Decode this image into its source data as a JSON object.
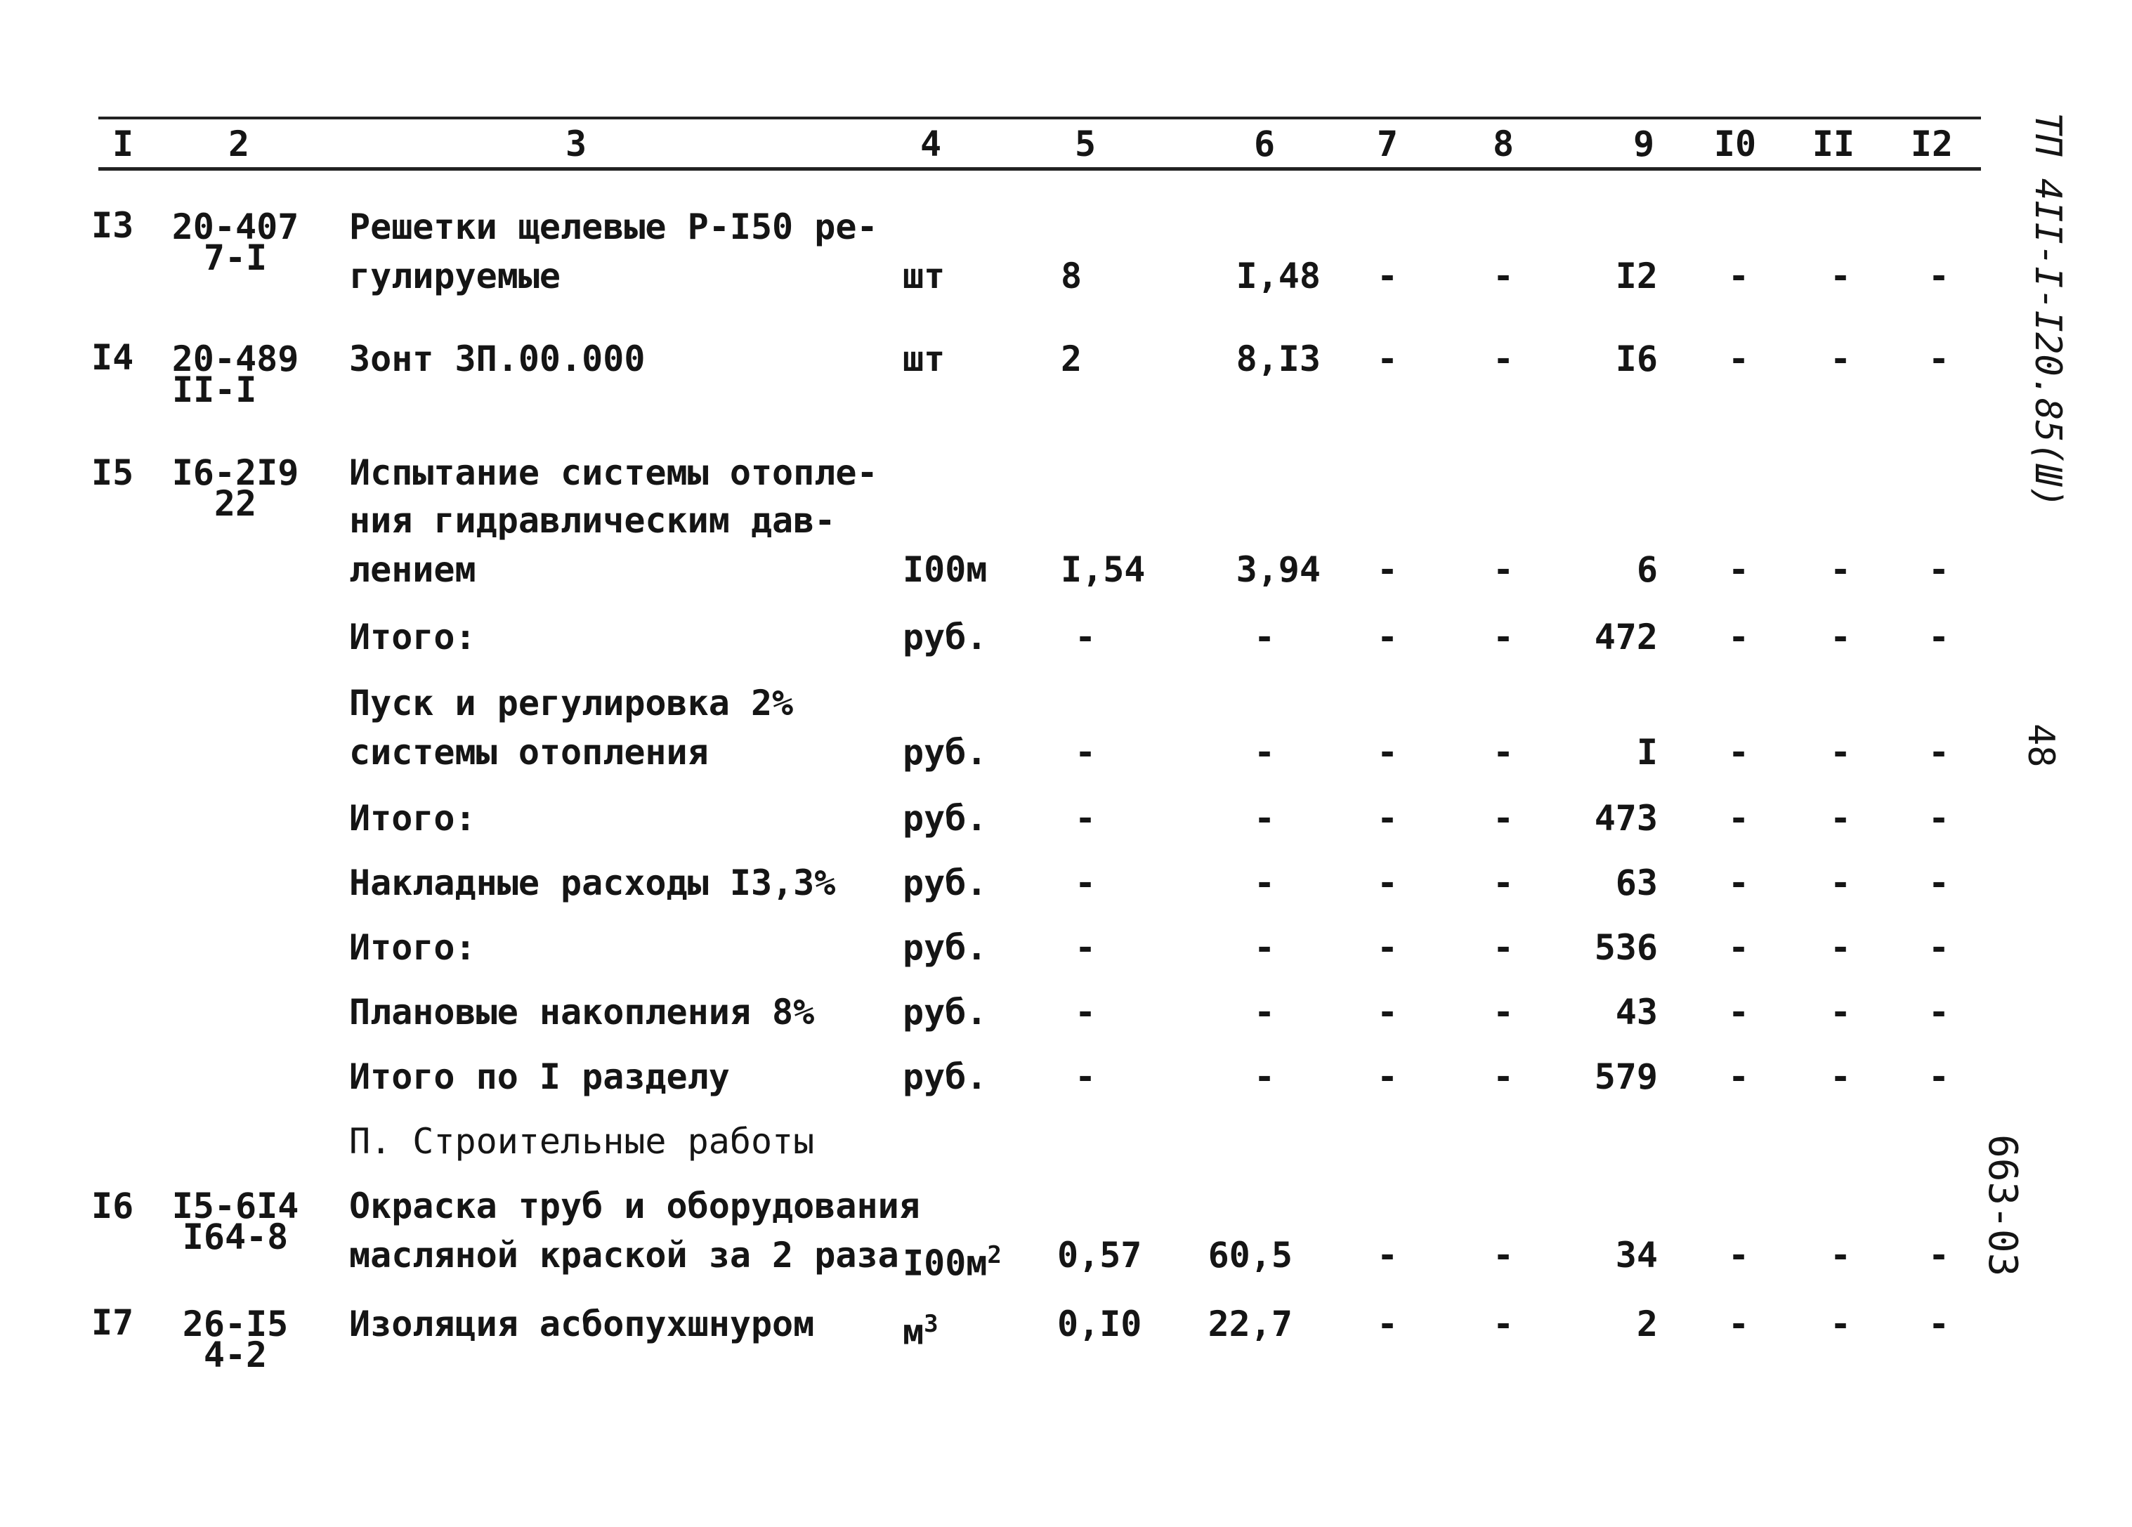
{
  "header": [
    "I",
    "2",
    "3",
    "4",
    "5",
    "6",
    "7",
    "8",
    "9",
    "I0",
    "II",
    "I2"
  ],
  "rows": {
    "r13": {
      "num": "I3",
      "code1": "20-407",
      "code2": "7-I",
      "desc1": "Решетки щелевые Р-I50 ре-",
      "desc2": "гулируемые",
      "unit": "шт",
      "c5": "8",
      "c6": "I,48",
      "c7": "-",
      "c8": "-",
      "c9": "I2",
      "c10": "-",
      "c11": "-",
      "c12": "-"
    },
    "r14": {
      "num": "I4",
      "code1": "20-489",
      "code2": "II-I",
      "desc1": "Зонт ЗП.00.000",
      "unit": "шт",
      "c5": "2",
      "c6": "8,I3",
      "c7": "-",
      "c8": "-",
      "c9": "I6",
      "c10": "-",
      "c11": "-",
      "c12": "-"
    },
    "r15": {
      "num": "I5",
      "code1": "I6-2I9",
      "code2": "22",
      "desc1": "Испытание системы отопле-",
      "desc2": "ния гидравлическим дав-",
      "desc3": "лением",
      "unit": "I00м",
      "c5": "I,54",
      "c6": "3,94",
      "c7": "-",
      "c8": "-",
      "c9": "6",
      "c10": "-",
      "c11": "-",
      "c12": "-"
    },
    "s1": {
      "desc1": "Итого:",
      "unit": "руб.",
      "c5": "-",
      "c6": "-",
      "c7": "-",
      "c8": "-",
      "c9": "472",
      "c10": "-",
      "c11": "-",
      "c12": "-"
    },
    "s2": {
      "desc1": "Пуск и регулировка 2%",
      "desc2": "системы отопления",
      "unit": "руб.",
      "c5": "-",
      "c6": "-",
      "c7": "-",
      "c8": "-",
      "c9": "I",
      "c10": "-",
      "c11": "-",
      "c12": "-"
    },
    "s3": {
      "desc1": "Итого:",
      "unit": "руб.",
      "c5": "-",
      "c6": "-",
      "c7": "-",
      "c8": "-",
      "c9": "473",
      "c10": "-",
      "c11": "-",
      "c12": "-"
    },
    "s4": {
      "desc1": "Накладные расходы I3,3%",
      "unit": "руб.",
      "c5": "-",
      "c6": "-",
      "c7": "-",
      "c8": "-",
      "c9": "63",
      "c10": "-",
      "c11": "-",
      "c12": "-"
    },
    "s5": {
      "desc1": "Итого:",
      "unit": "руб.",
      "c5": "-",
      "c6": "-",
      "c7": "-",
      "c8": "-",
      "c9": "536",
      "c10": "-",
      "c11": "-",
      "c12": "-"
    },
    "s6": {
      "desc1": "Плановые накопления 8%",
      "unit": "руб.",
      "c5": "-",
      "c6": "-",
      "c7": "-",
      "c8": "-",
      "c9": "43",
      "c10": "-",
      "c11": "-",
      "c12": "-"
    },
    "s7": {
      "desc1": "Итого по I разделу",
      "unit": "руб.",
      "c5": "-",
      "c6": "-",
      "c7": "-",
      "c8": "-",
      "c9": "579",
      "c10": "-",
      "c11": "-",
      "c12": "-"
    },
    "sec2": {
      "desc1": "П. Строительные работы"
    },
    "r16": {
      "num": "I6",
      "code1": "I5-6I4",
      "code2": "I64-8",
      "desc1": "Окраска труб и оборудования",
      "desc2": "масляной краской за 2 раза",
      "unit": "I00м",
      "unit_sup": "2",
      "c5": "0,57",
      "c6": "60,5",
      "c7": "-",
      "c8": "-",
      "c9": "34",
      "c10": "-",
      "c11": "-",
      "c12": "-"
    },
    "r17": {
      "num": "I7",
      "code1": "26-I5",
      "code2": "4-2",
      "desc1": "Изоляция асбопухшнуром",
      "unit": "м",
      "unit_sup": "3",
      "c5": "0,I0",
      "c6": "22,7",
      "c7": "-",
      "c8": "-",
      "c9": "2",
      "c10": "-",
      "c11": "-",
      "c12": "-"
    }
  },
  "side": {
    "doc_code": "ТП 4II-I-I20.85(Ш)",
    "page_number": "48",
    "album_code": "663-03"
  }
}
